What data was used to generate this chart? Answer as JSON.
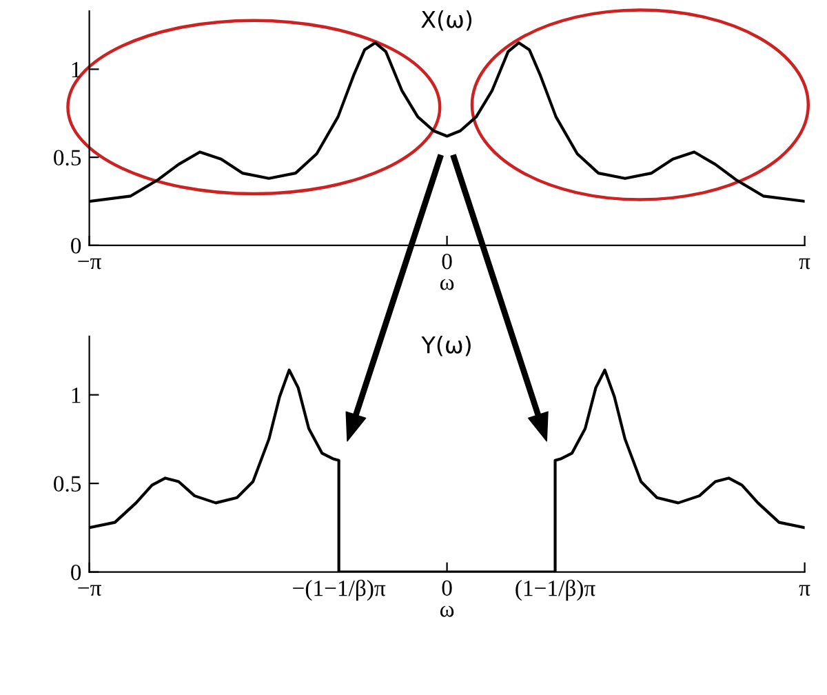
{
  "chart_data": [
    {
      "type": "line",
      "title": "X(ω)",
      "xlabel": "ω",
      "xlim": [
        -3.1416,
        3.1416
      ],
      "ylim": [
        0,
        1.33
      ],
      "yticks": [
        0,
        0.5,
        1
      ],
      "xticks": [
        {
          "value": -3.1416,
          "label": "−π"
        },
        0,
        {
          "value": 3.1416,
          "label": "π"
        }
      ],
      "grid": false,
      "legend": false,
      "series": [
        {
          "color": "#000000",
          "x": [
            -3.1416,
            -2.778,
            -2.544,
            -2.357,
            -2.171,
            -1.984,
            -1.797,
            -1.564,
            -1.33,
            -1.144,
            -0.957,
            -0.817,
            -0.724,
            -0.63,
            -0.537,
            -0.397,
            -0.257,
            -0.117,
            0,
            0.117,
            0.257,
            0.397,
            0.537,
            0.63,
            0.724,
            0.817,
            0.957,
            1.144,
            1.33,
            1.564,
            1.797,
            1.984,
            2.171,
            2.357,
            2.544,
            2.778,
            3.1416
          ],
          "values": [
            0.25,
            0.28,
            0.37,
            0.46,
            0.53,
            0.49,
            0.41,
            0.38,
            0.41,
            0.52,
            0.73,
            0.97,
            1.11,
            1.15,
            1.1,
            0.88,
            0.73,
            0.65,
            0.62,
            0.65,
            0.73,
            0.88,
            1.1,
            1.15,
            1.11,
            0.97,
            0.73,
            0.52,
            0.41,
            0.38,
            0.41,
            0.49,
            0.53,
            0.46,
            0.37,
            0.28,
            0.25
          ]
        }
      ]
    },
    {
      "type": "line",
      "title": "Y(ω)",
      "xlabel": "ω",
      "xlim": [
        -3.1416,
        3.1416
      ],
      "ylim": [
        0,
        1.33
      ],
      "yticks": [
        0,
        0.5,
        1
      ],
      "xticks": [
        {
          "value": -3.1416,
          "label": "−π"
        },
        {
          "value": -0.95,
          "label": "−(1−1/β)π"
        },
        0,
        {
          "value": 0.95,
          "label": "(1−1/β)π"
        },
        {
          "value": 3.1416,
          "label": "π"
        }
      ],
      "grid": false,
      "legend": false,
      "series": [
        {
          "color": "#000000",
          "x": [
            -3.1416,
            -2.917,
            -2.731,
            -2.591,
            -2.474,
            -2.357,
            -2.217,
            -2.031,
            -1.844,
            -1.704,
            -1.564,
            -1.47,
            -1.386,
            -1.307,
            -1.214,
            -1.097,
            -1.004,
            -0.95,
            -0.95,
            0.95,
            0.95,
            1.004,
            1.097,
            1.214,
            1.307,
            1.386,
            1.47,
            1.564,
            1.704,
            1.844,
            2.031,
            2.217,
            2.357,
            2.474,
            2.591,
            2.731,
            2.917,
            3.1416
          ],
          "values": [
            0.25,
            0.28,
            0.39,
            0.49,
            0.53,
            0.51,
            0.43,
            0.39,
            0.42,
            0.51,
            0.75,
            0.99,
            1.14,
            1.04,
            0.81,
            0.67,
            0.64,
            0.63,
            0,
            0,
            0.63,
            0.64,
            0.67,
            0.81,
            1.04,
            1.14,
            0.99,
            0.75,
            0.51,
            0.42,
            0.39,
            0.43,
            0.51,
            0.53,
            0.49,
            0.39,
            0.28,
            0.25
          ]
        }
      ]
    }
  ]
}
